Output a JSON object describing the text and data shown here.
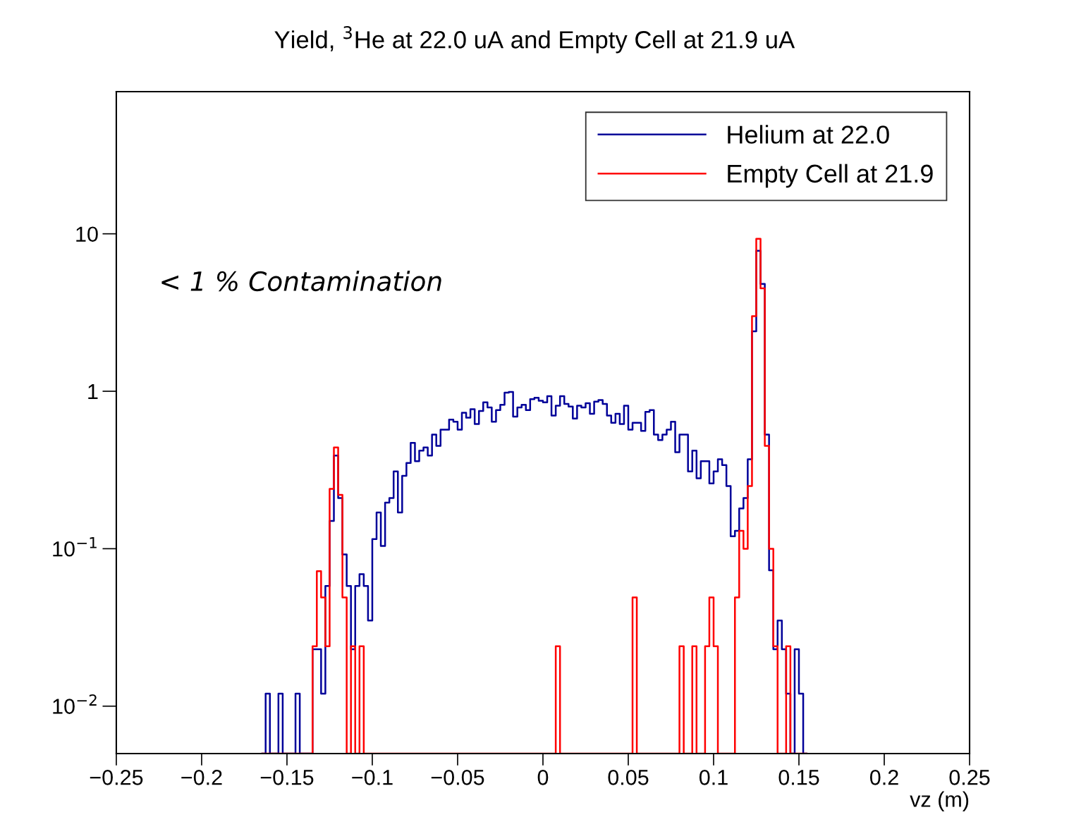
{
  "chart_data": {
    "type": "histogram",
    "title": "Yield, $^{3}$He at 22.0 uA and Empty Cell at 21.9 uA",
    "xlabel": "vz (m)",
    "annotations": [
      "< 1 % Contamination"
    ],
    "bins": [
      -0.165,
      -0.1625,
      -0.16,
      -0.1575,
      -0.155,
      -0.1525,
      -0.15,
      -0.1475,
      -0.145,
      -0.1425,
      -0.14,
      -0.1375,
      -0.135,
      -0.1325,
      -0.13,
      -0.1275,
      -0.125,
      -0.1225,
      -0.12,
      -0.1175,
      -0.115,
      -0.1125,
      -0.11,
      -0.1075,
      -0.105,
      -0.1025,
      -0.1,
      -0.0975,
      -0.095,
      -0.0925,
      -0.09,
      -0.0875,
      -0.085,
      -0.0825,
      -0.08,
      -0.0775,
      -0.075,
      -0.0725,
      -0.07,
      -0.0675,
      -0.065,
      -0.0625,
      -0.06,
      -0.0575,
      -0.055,
      -0.0525,
      -0.05,
      -0.0475,
      -0.045,
      -0.0425,
      -0.04,
      -0.0375,
      -0.035,
      -0.0325,
      -0.03,
      -0.0275,
      -0.025,
      -0.0225,
      -0.02,
      -0.0175,
      -0.015,
      -0.0125,
      -0.01,
      -0.0075,
      -0.005,
      -0.0025,
      0,
      0.0025,
      0.005,
      0.0075,
      0.01,
      0.0125,
      0.015,
      0.0175,
      0.02,
      0.0225,
      0.025,
      0.0275,
      0.03,
      0.0325,
      0.035,
      0.0375,
      0.04,
      0.0425,
      0.045,
      0.0475,
      0.05,
      0.0525,
      0.055,
      0.0575,
      0.06,
      0.0625,
      0.065,
      0.0675,
      0.07,
      0.0725,
      0.075,
      0.0775,
      0.08,
      0.0825,
      0.085,
      0.0875,
      0.09,
      0.0925,
      0.095,
      0.0975,
      0.1,
      0.1025,
      0.105,
      0.1075,
      0.11,
      0.1125,
      0.115,
      0.1175,
      0.12,
      0.1225,
      0.125,
      0.1275,
      0.13,
      0.1325,
      0.135,
      0.1375,
      0.14,
      0.1425,
      0.145,
      0.1475,
      0.15,
      0.1525,
      0.155
    ],
    "series": [
      {
        "name": "Helium at 22.0",
        "color": "#000099",
        "values": [
          null,
          0.012,
          null,
          null,
          0.012,
          null,
          null,
          null,
          0.012,
          null,
          null,
          null,
          0.023,
          0.023,
          0.012,
          0.058,
          0.15,
          0.39,
          0.21,
          0.092,
          0.058,
          0.023,
          0.058,
          0.069,
          0.058,
          0.035,
          0.115,
          0.17,
          0.104,
          0.196,
          0.21,
          0.31,
          0.17,
          0.29,
          0.35,
          0.47,
          0.36,
          0.42,
          0.44,
          0.39,
          0.53,
          0.45,
          0.57,
          0.57,
          0.66,
          0.64,
          0.57,
          0.73,
          0.68,
          0.77,
          0.62,
          0.75,
          0.85,
          0.79,
          0.64,
          0.76,
          0.82,
          0.98,
          0.99,
          0.69,
          0.79,
          0.82,
          0.76,
          0.89,
          0.91,
          0.87,
          0.85,
          0.93,
          0.7,
          0.81,
          0.93,
          0.83,
          0.8,
          0.67,
          0.81,
          0.79,
          0.84,
          0.72,
          0.86,
          0.88,
          0.83,
          0.7,
          0.63,
          0.72,
          0.62,
          0.81,
          0.57,
          0.63,
          0.63,
          0.56,
          0.74,
          0.76,
          0.53,
          0.49,
          0.53,
          0.57,
          0.64,
          0.41,
          0.53,
          0.53,
          0.31,
          0.42,
          0.28,
          0.36,
          0.36,
          0.26,
          0.31,
          0.37,
          0.34,
          0.25,
          0.12,
          0.13,
          0.18,
          0.21,
          0.37,
          2.4,
          7.8,
          4.8,
          0.53,
          0.073,
          0.023,
          0.035,
          0.023,
          0.012,
          null,
          0.023,
          0.012,
          null
        ]
      },
      {
        "name": "Empty Cell at 21.9",
        "color": "#ff0000",
        "values": [
          null,
          null,
          null,
          null,
          null,
          null,
          null,
          null,
          null,
          null,
          null,
          null,
          0.024,
          0.072,
          0.049,
          0.024,
          0.24,
          0.44,
          0.22,
          0.049,
          null,
          0.024,
          null,
          0.024,
          null,
          null,
          null,
          null,
          null,
          null,
          null,
          null,
          null,
          null,
          null,
          null,
          null,
          null,
          null,
          null,
          null,
          null,
          null,
          null,
          null,
          null,
          null,
          null,
          null,
          null,
          null,
          null,
          null,
          null,
          null,
          null,
          null,
          null,
          null,
          null,
          null,
          null,
          null,
          null,
          null,
          null,
          null,
          null,
          null,
          0.024,
          null,
          null,
          null,
          null,
          null,
          null,
          null,
          null,
          null,
          null,
          null,
          null,
          null,
          null,
          null,
          null,
          null,
          0.049,
          null,
          null,
          null,
          null,
          null,
          null,
          null,
          null,
          null,
          null,
          0.024,
          null,
          null,
          0.024,
          null,
          null,
          0.024,
          0.049,
          0.024,
          null,
          null,
          null,
          null,
          0.049,
          0.13,
          0.1,
          0.25,
          3.0,
          9.3,
          4.5,
          0.45,
          0.1,
          0.024,
          null,
          null,
          0.024,
          null,
          null,
          null,
          null
        ]
      }
    ],
    "xlim": [
      -0.25,
      0.25
    ],
    "xticks": [
      {
        "value": -0.25,
        "label": "−0.25"
      },
      {
        "value": -0.2,
        "label": "−0.2"
      },
      {
        "value": -0.15,
        "label": "−0.15"
      },
      {
        "value": -0.1,
        "label": "−0.1"
      },
      {
        "value": -0.05,
        "label": "−0.05"
      },
      0,
      0.05,
      0.1,
      0.15,
      0.2,
      0.25
    ],
    "ylim": [
      0.005,
      80
    ],
    "yticks": [
      {
        "value": 0.01,
        "label": "10$^{−2}$"
      },
      {
        "value": 0.1,
        "label": "10$^{−1}$"
      },
      1,
      10
    ],
    "log": "y",
    "grid": false,
    "legend": "top right",
    "line_style": "solid"
  }
}
